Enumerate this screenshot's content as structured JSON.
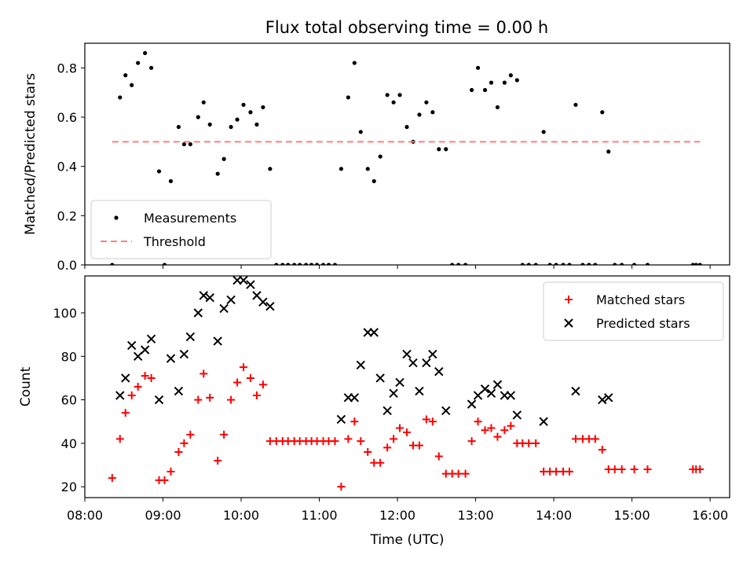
{
  "title": "Flux total observing time = 0.00 h",
  "chart_data": [
    {
      "type": "scatter",
      "ylabel": "Matched/Predicted stars",
      "xlim": [
        8.0,
        16.25
      ],
      "ylim": [
        0.0,
        0.9
      ],
      "yticks": [
        0.0,
        0.2,
        0.4,
        0.6,
        0.8
      ],
      "ytick_labels": [
        "0.0",
        "0.2",
        "0.4",
        "0.6",
        "0.8"
      ],
      "legend_position": "lower-left",
      "series": [
        {
          "name": "Measurements",
          "marker": "dot",
          "color": "#000000",
          "points": [
            [
              8.35,
              0.0
            ],
            [
              8.45,
              0.68
            ],
            [
              8.52,
              0.77
            ],
            [
              8.6,
              0.73
            ],
            [
              8.68,
              0.82
            ],
            [
              8.77,
              0.86
            ],
            [
              8.85,
              0.8
            ],
            [
              8.95,
              0.38
            ],
            [
              9.02,
              0.0
            ],
            [
              9.1,
              0.34
            ],
            [
              9.2,
              0.56
            ],
            [
              9.27,
              0.49
            ],
            [
              9.35,
              0.49
            ],
            [
              9.45,
              0.6
            ],
            [
              9.52,
              0.66
            ],
            [
              9.6,
              0.57
            ],
            [
              9.7,
              0.37
            ],
            [
              9.78,
              0.43
            ],
            [
              9.87,
              0.56
            ],
            [
              9.95,
              0.59
            ],
            [
              10.03,
              0.65
            ],
            [
              10.12,
              0.62
            ],
            [
              10.2,
              0.57
            ],
            [
              10.28,
              0.64
            ],
            [
              10.37,
              0.39
            ],
            [
              10.45,
              0.0
            ],
            [
              10.53,
              0.0
            ],
            [
              10.6,
              0.0
            ],
            [
              10.68,
              0.0
            ],
            [
              10.75,
              0.0
            ],
            [
              10.83,
              0.0
            ],
            [
              10.9,
              0.0
            ],
            [
              10.97,
              0.0
            ],
            [
              11.05,
              0.0
            ],
            [
              11.12,
              0.0
            ],
            [
              11.2,
              0.0
            ],
            [
              11.28,
              0.39
            ],
            [
              11.37,
              0.68
            ],
            [
              11.45,
              0.82
            ],
            [
              11.53,
              0.54
            ],
            [
              11.62,
              0.39
            ],
            [
              11.7,
              0.34
            ],
            [
              11.78,
              0.44
            ],
            [
              11.87,
              0.69
            ],
            [
              11.95,
              0.66
            ],
            [
              12.03,
              0.69
            ],
            [
              12.12,
              0.56
            ],
            [
              12.2,
              0.5
            ],
            [
              12.28,
              0.61
            ],
            [
              12.37,
              0.66
            ],
            [
              12.45,
              0.62
            ],
            [
              12.53,
              0.47
            ],
            [
              12.62,
              0.47
            ],
            [
              12.7,
              0.0
            ],
            [
              12.78,
              0.0
            ],
            [
              12.87,
              0.0
            ],
            [
              12.95,
              0.71
            ],
            [
              13.03,
              0.8
            ],
            [
              13.12,
              0.71
            ],
            [
              13.2,
              0.74
            ],
            [
              13.28,
              0.64
            ],
            [
              13.37,
              0.74
            ],
            [
              13.45,
              0.77
            ],
            [
              13.53,
              0.75
            ],
            [
              13.6,
              0.0
            ],
            [
              13.68,
              0.0
            ],
            [
              13.77,
              0.0
            ],
            [
              13.87,
              0.54
            ],
            [
              13.95,
              0.0
            ],
            [
              14.03,
              0.0
            ],
            [
              14.12,
              0.0
            ],
            [
              14.2,
              0.0
            ],
            [
              14.28,
              0.65
            ],
            [
              14.37,
              0.0
            ],
            [
              14.45,
              0.0
            ],
            [
              14.53,
              0.0
            ],
            [
              14.62,
              0.62
            ],
            [
              14.7,
              0.46
            ],
            [
              14.78,
              0.0
            ],
            [
              14.87,
              0.0
            ],
            [
              15.03,
              0.0
            ],
            [
              15.2,
              0.0
            ],
            [
              15.78,
              0.0
            ],
            [
              15.82,
              0.0
            ],
            [
              15.87,
              0.0
            ]
          ]
        },
        {
          "name": "Threshold",
          "marker": "dashed-line",
          "color": "#ff7f7f",
          "points": [
            [
              8.35,
              0.5
            ],
            [
              15.87,
              0.5
            ]
          ]
        }
      ]
    },
    {
      "type": "scatter",
      "xlabel": "Time (UTC)",
      "ylabel": "Count",
      "xlim": [
        8.0,
        16.25
      ],
      "ylim": [
        15.0,
        117.0
      ],
      "xticks": [
        8,
        9,
        10,
        11,
        12,
        13,
        14,
        15,
        16
      ],
      "xtick_labels": [
        "08:00",
        "09:00",
        "10:00",
        "11:00",
        "12:00",
        "13:00",
        "14:00",
        "15:00",
        "16:00"
      ],
      "yticks": [
        20,
        40,
        60,
        80,
        100
      ],
      "ytick_labels": [
        "20",
        "40",
        "60",
        "80",
        "100"
      ],
      "legend_position": "upper-right",
      "series": [
        {
          "name": "Matched stars",
          "marker": "plus",
          "color": "#ff0000",
          "points": [
            [
              8.35,
              24
            ],
            [
              8.45,
              42
            ],
            [
              8.52,
              54
            ],
            [
              8.6,
              62
            ],
            [
              8.68,
              66
            ],
            [
              8.77,
              71
            ],
            [
              8.85,
              70
            ],
            [
              8.95,
              23
            ],
            [
              9.02,
              23
            ],
            [
              9.1,
              27
            ],
            [
              9.2,
              36
            ],
            [
              9.27,
              40
            ],
            [
              9.35,
              44
            ],
            [
              9.45,
              60
            ],
            [
              9.52,
              72
            ],
            [
              9.6,
              61
            ],
            [
              9.7,
              32
            ],
            [
              9.78,
              44
            ],
            [
              9.87,
              60
            ],
            [
              9.95,
              68
            ],
            [
              10.03,
              75
            ],
            [
              10.12,
              70
            ],
            [
              10.2,
              62
            ],
            [
              10.28,
              67
            ],
            [
              10.37,
              41
            ],
            [
              10.45,
              41
            ],
            [
              10.53,
              41
            ],
            [
              10.6,
              41
            ],
            [
              10.68,
              41
            ],
            [
              10.75,
              41
            ],
            [
              10.83,
              41
            ],
            [
              10.9,
              41
            ],
            [
              10.97,
              41
            ],
            [
              11.05,
              41
            ],
            [
              11.12,
              41
            ],
            [
              11.2,
              41
            ],
            [
              11.28,
              20
            ],
            [
              11.37,
              42
            ],
            [
              11.45,
              50
            ],
            [
              11.53,
              41
            ],
            [
              11.62,
              36
            ],
            [
              11.7,
              31
            ],
            [
              11.78,
              31
            ],
            [
              11.87,
              38
            ],
            [
              11.95,
              42
            ],
            [
              12.03,
              47
            ],
            [
              12.12,
              45
            ],
            [
              12.2,
              39
            ],
            [
              12.28,
              39
            ],
            [
              12.37,
              51
            ],
            [
              12.45,
              50
            ],
            [
              12.53,
              34
            ],
            [
              12.62,
              26
            ],
            [
              12.7,
              26
            ],
            [
              12.78,
              26
            ],
            [
              12.87,
              26
            ],
            [
              12.95,
              41
            ],
            [
              13.03,
              50
            ],
            [
              13.12,
              46
            ],
            [
              13.2,
              47
            ],
            [
              13.28,
              43
            ],
            [
              13.37,
              46
            ],
            [
              13.45,
              48
            ],
            [
              13.53,
              40
            ],
            [
              13.6,
              40
            ],
            [
              13.68,
              40
            ],
            [
              13.77,
              40
            ],
            [
              13.87,
              27
            ],
            [
              13.95,
              27
            ],
            [
              14.03,
              27
            ],
            [
              14.12,
              27
            ],
            [
              14.2,
              27
            ],
            [
              14.28,
              42
            ],
            [
              14.37,
              42
            ],
            [
              14.45,
              42
            ],
            [
              14.53,
              42
            ],
            [
              14.62,
              37
            ],
            [
              14.7,
              28
            ],
            [
              14.78,
              28
            ],
            [
              14.87,
              28
            ],
            [
              15.03,
              28
            ],
            [
              15.2,
              28
            ],
            [
              15.78,
              28
            ],
            [
              15.82,
              28
            ],
            [
              15.87,
              28
            ]
          ]
        },
        {
          "name": "Predicted stars",
          "marker": "x",
          "color": "#000000",
          "points": [
            [
              8.45,
              62
            ],
            [
              8.52,
              70
            ],
            [
              8.6,
              85
            ],
            [
              8.68,
              80
            ],
            [
              8.77,
              83
            ],
            [
              8.85,
              88
            ],
            [
              8.95,
              60
            ],
            [
              9.1,
              79
            ],
            [
              9.2,
              64
            ],
            [
              9.27,
              81
            ],
            [
              9.35,
              89
            ],
            [
              9.45,
              100
            ],
            [
              9.52,
              108
            ],
            [
              9.6,
              107
            ],
            [
              9.7,
              87
            ],
            [
              9.78,
              102
            ],
            [
              9.87,
              106
            ],
            [
              9.95,
              115
            ],
            [
              10.03,
              115
            ],
            [
              10.12,
              113
            ],
            [
              10.2,
              108
            ],
            [
              10.28,
              105
            ],
            [
              10.37,
              103
            ],
            [
              11.28,
              51
            ],
            [
              11.37,
              61
            ],
            [
              11.45,
              61
            ],
            [
              11.53,
              76
            ],
            [
              11.62,
              91
            ],
            [
              11.7,
              91
            ],
            [
              11.78,
              70
            ],
            [
              11.87,
              55
            ],
            [
              11.95,
              63
            ],
            [
              12.03,
              68
            ],
            [
              12.12,
              81
            ],
            [
              12.2,
              77
            ],
            [
              12.28,
              64
            ],
            [
              12.37,
              77
            ],
            [
              12.45,
              81
            ],
            [
              12.53,
              73
            ],
            [
              12.62,
              55
            ],
            [
              12.95,
              58
            ],
            [
              13.03,
              62
            ],
            [
              13.12,
              65
            ],
            [
              13.2,
              63
            ],
            [
              13.28,
              67
            ],
            [
              13.37,
              62
            ],
            [
              13.45,
              62
            ],
            [
              13.53,
              53
            ],
            [
              13.87,
              50
            ],
            [
              14.28,
              64
            ],
            [
              14.62,
              60
            ],
            [
              14.7,
              61
            ]
          ]
        }
      ]
    }
  ]
}
